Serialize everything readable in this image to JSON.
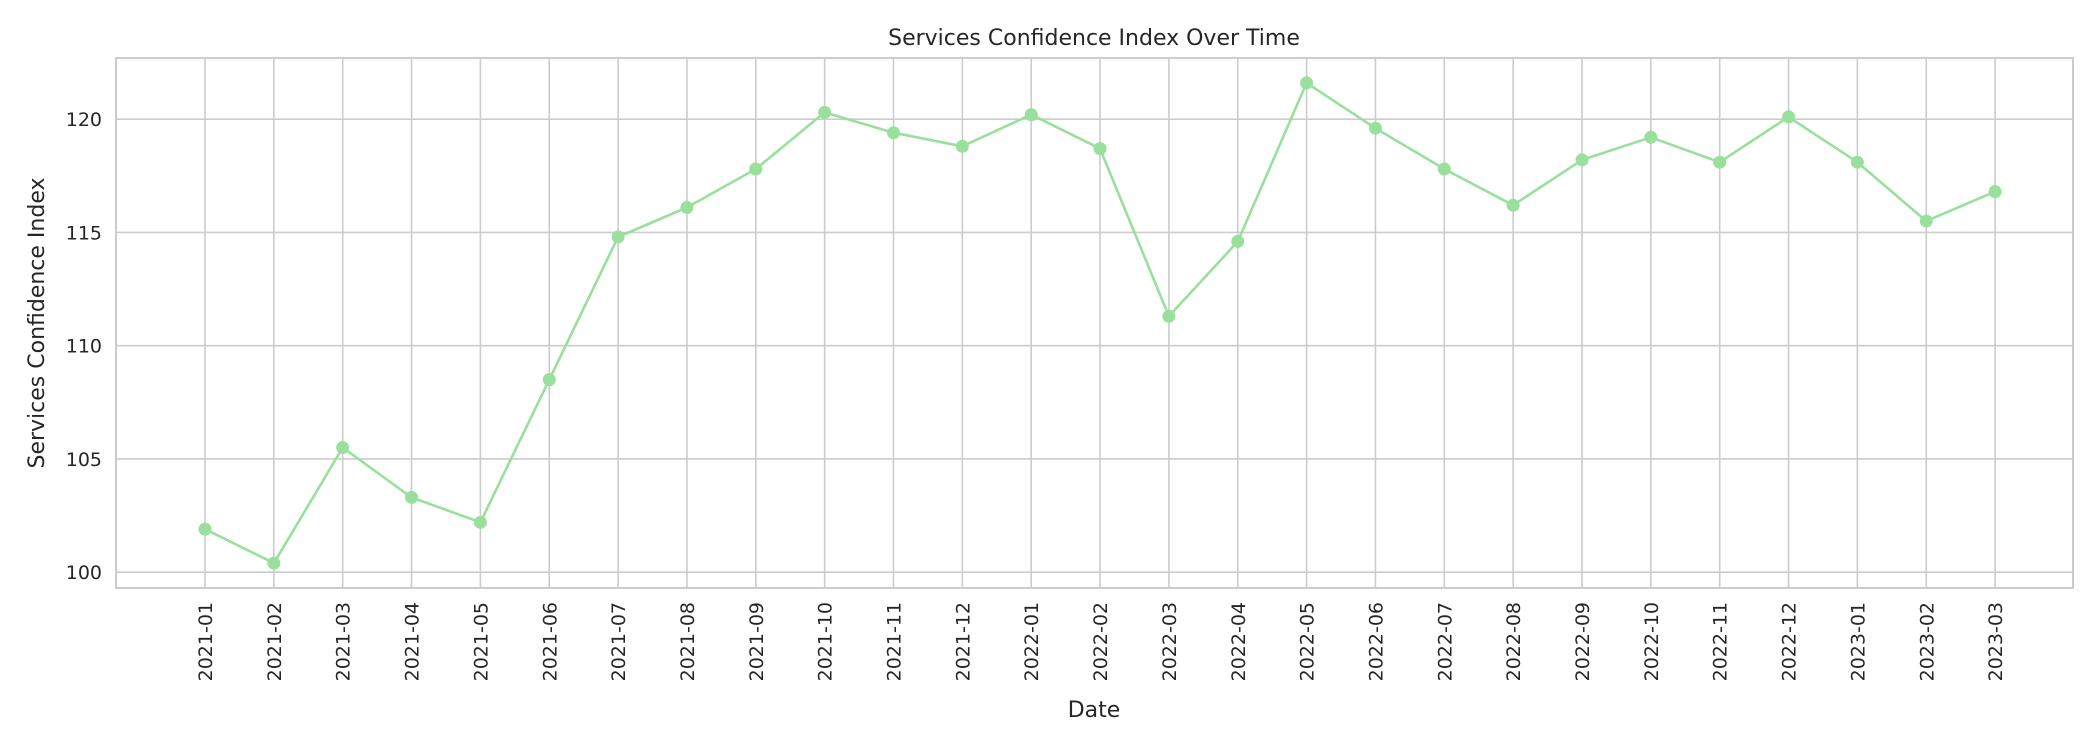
{
  "chart_data": {
    "type": "line",
    "title": "Services Confidence Index Over Time",
    "xlabel": "Date",
    "ylabel": "Services Confidence Index",
    "categories": [
      "2021-01",
      "2021-02",
      "2021-03",
      "2021-04",
      "2021-05",
      "2021-06",
      "2021-07",
      "2021-08",
      "2021-09",
      "2021-10",
      "2021-11",
      "2021-12",
      "2022-01",
      "2022-02",
      "2022-03",
      "2022-04",
      "2022-05",
      "2022-06",
      "2022-07",
      "2022-08",
      "2022-09",
      "2022-10",
      "2022-11",
      "2022-12",
      "2023-01",
      "2023-02",
      "2023-03"
    ],
    "series": [
      {
        "values": [
          101.9,
          100.4,
          105.5,
          103.3,
          102.2,
          108.5,
          114.8,
          116.1,
          117.8,
          120.3,
          119.4,
          118.8,
          120.2,
          118.7,
          111.3,
          114.6,
          121.6,
          119.6,
          117.8,
          116.2,
          118.2,
          119.2,
          118.1,
          120.1,
          118.1,
          115.5,
          116.8
        ],
        "color": "#98e09b",
        "marker": "circle"
      }
    ],
    "yticks": [
      100,
      105,
      110,
      115,
      120
    ],
    "ylim": [
      99.3,
      122.7
    ],
    "grid": true,
    "legend": "none"
  }
}
